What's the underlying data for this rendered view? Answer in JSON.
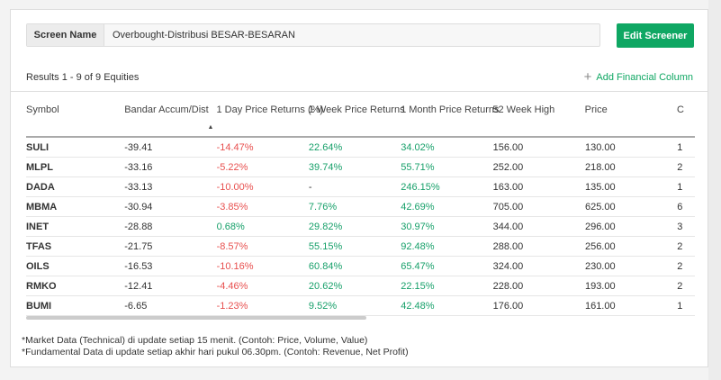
{
  "screen": {
    "label": "Screen Name",
    "value": "Overbought-Distribusi BESAR-BESARAN",
    "edit_button": "Edit Screener"
  },
  "results": "Results 1 - 9 of 9 Equities",
  "add_column": "Add Financial Column",
  "columns": [
    "Symbol",
    "Bandar Accum/Dist",
    "1 Day Price Returns (%)",
    "1 Week Price Returns",
    "1 Month Price Returns",
    "52 Week High",
    "Price",
    "C"
  ],
  "rows": [
    [
      "SULI",
      "-39.41",
      "-14.47%",
      "22.64%",
      "34.02%",
      "156.00",
      "130.00",
      "1"
    ],
    [
      "MLPL",
      "-33.16",
      "-5.22%",
      "39.74%",
      "55.71%",
      "252.00",
      "218.00",
      "2"
    ],
    [
      "DADA",
      "-33.13",
      "-10.00%",
      "-",
      "246.15%",
      "163.00",
      "135.00",
      "1"
    ],
    [
      "MBMA",
      "-30.94",
      "-3.85%",
      "7.76%",
      "42.69%",
      "705.00",
      "625.00",
      "6"
    ],
    [
      "INET",
      "-28.88",
      "0.68%",
      "29.82%",
      "30.97%",
      "344.00",
      "296.00",
      "3"
    ],
    [
      "TFAS",
      "-21.75",
      "-8.57%",
      "55.15%",
      "92.48%",
      "288.00",
      "256.00",
      "2"
    ],
    [
      "OILS",
      "-16.53",
      "-10.16%",
      "60.84%",
      "65.47%",
      "324.00",
      "230.00",
      "2"
    ],
    [
      "RMKO",
      "-12.41",
      "-4.46%",
      "20.62%",
      "22.15%",
      "228.00",
      "193.00",
      "2"
    ],
    [
      "BUMI",
      "-6.65",
      "-1.23%",
      "9.52%",
      "42.48%",
      "176.00",
      "161.00",
      "1"
    ]
  ],
  "notes": [
    "*Market Data (Technical) di update setiap 15 menit. (Contoh: Price, Volume, Value)",
    "*Fundamental Data di update setiap akhir hari pukul 06.30pm. (Contoh: Revenue, Net Profit)"
  ]
}
